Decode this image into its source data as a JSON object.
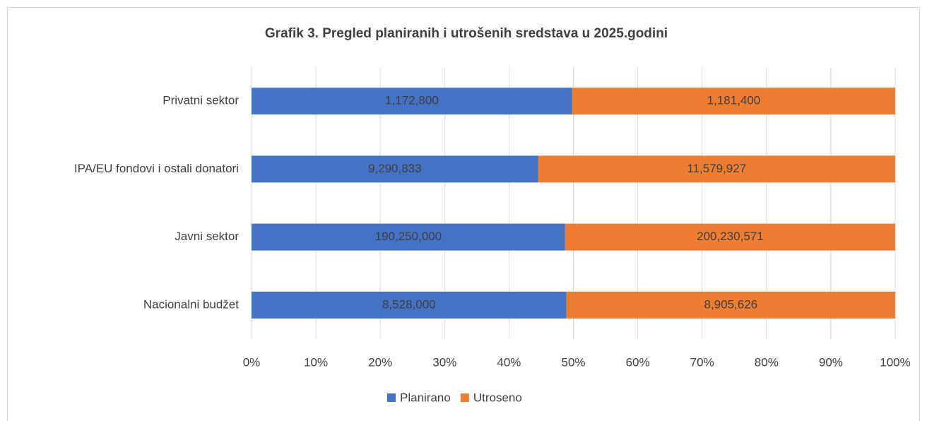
{
  "chart_data": {
    "type": "bar",
    "orientation": "horizontal",
    "stacking": "percent",
    "title": "Grafik 3. Pregled planiranih i utrošenih sredstava u 2025.godini",
    "categories": [
      "Privatni sektor",
      "IPA/EU fondovi i ostali donatori",
      "Javni sektor",
      "Nacionalni budžet"
    ],
    "series": [
      {
        "name": "Planirano",
        "color": "#4472c4",
        "values": [
          1172800,
          9290833,
          190250000,
          8528000
        ],
        "value_labels": [
          "1,172,800",
          "9,290,833",
          "190,250,000",
          "8,528,000"
        ]
      },
      {
        "name": "Utroseno",
        "color": "#ed7d31",
        "values": [
          1181400,
          11579927,
          200230571,
          8905626
        ],
        "value_labels": [
          "1,181,400",
          "11,579,927",
          "200,230,571",
          "8,905,626"
        ]
      }
    ],
    "xlim": [
      0,
      100
    ],
    "xticks": [
      {
        "value": 0,
        "label": "0%"
      },
      {
        "value": 10,
        "label": "10%"
      },
      {
        "value": 20,
        "label": "20%"
      },
      {
        "value": 30,
        "label": "30%"
      },
      {
        "value": 40,
        "label": "40%"
      },
      {
        "value": 50,
        "label": "50%"
      },
      {
        "value": 60,
        "label": "60%"
      },
      {
        "value": 70,
        "label": "70%"
      },
      {
        "value": 80,
        "label": "80%"
      },
      {
        "value": 90,
        "label": "90%"
      },
      {
        "value": 100,
        "label": "100%"
      }
    ],
    "grid": true,
    "legend": "bottom"
  }
}
